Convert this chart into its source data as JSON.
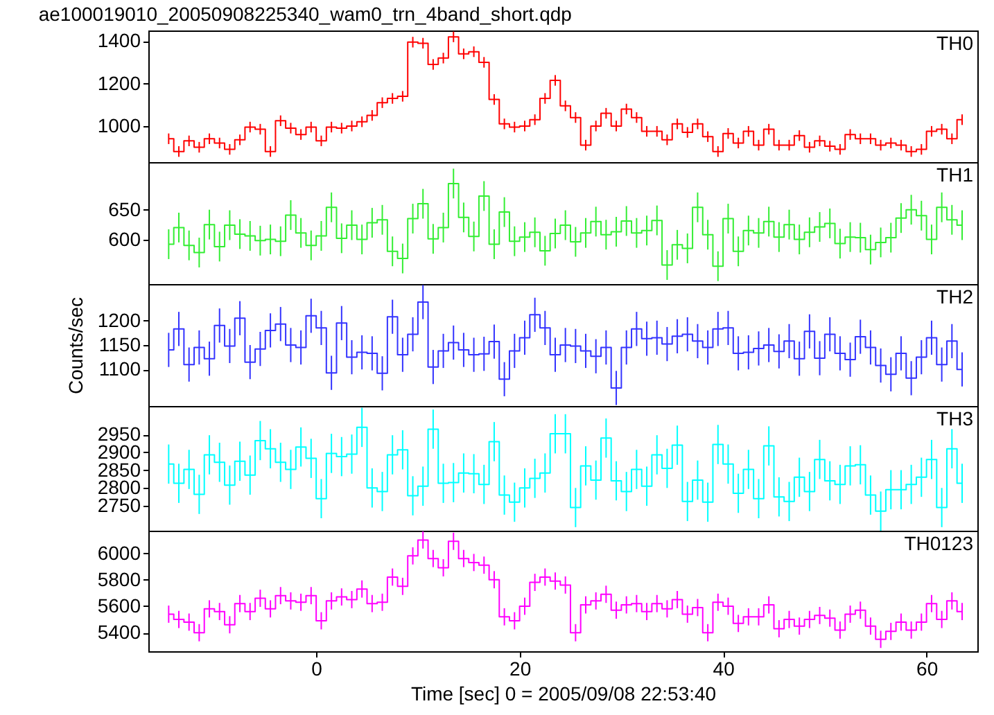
{
  "chart_data": [
    {
      "type": "step",
      "title": "ae100019010_20050908225340_wam0_trn_4band_short.qdp",
      "xlim": [
        -16.5,
        65
      ],
      "xticks": [
        0,
        20,
        40,
        60
      ],
      "ylim": [
        830,
        1450
      ],
      "yticks": [
        1000,
        1200,
        1400
      ],
      "tick_labels": "y",
      "x": [
        -14.5,
        -13.5,
        -12.5,
        -11.5,
        -10.5,
        -9.5,
        -8.5,
        -7.5,
        -6.5,
        -5.5,
        -4.5,
        -3.5,
        -2.5,
        -1.5,
        -0.5,
        0.5,
        1.5,
        2.5,
        3.5,
        4.5,
        5.5,
        6.5,
        7.5,
        8.5,
        9.5,
        10.5,
        11.5,
        12.5,
        13.5,
        14.5,
        15.5,
        16.5,
        17.5,
        18.5,
        19.5,
        20.5,
        21.5,
        22.5,
        23.5,
        24.5,
        25.5,
        26.5,
        27.5,
        28.5,
        29.5,
        30.5,
        31.5,
        32.5,
        33.5,
        34.5,
        35.5,
        36.5,
        37.5,
        38.5,
        39.5,
        40.5,
        41.5,
        42.5,
        43.5,
        44.5,
        45.5,
        46.5,
        47.5,
        48.5,
        49.5,
        50.5,
        51.5,
        52.5,
        53.5,
        54.5,
        55.5,
        56.5,
        57.5,
        58.5,
        59.5,
        60.5,
        61.5,
        62.5,
        63.5
      ],
      "series": [
        {
          "name": "TH0",
          "color": "#ff0000",
          "values": [
            940,
            880,
            930,
            900,
            940,
            920,
            890,
            935,
            995,
            985,
            880,
            1025,
            990,
            960,
            995,
            930,
            995,
            990,
            1000,
            1020,
            1050,
            1110,
            1130,
            1140,
            1395,
            1390,
            1290,
            1320,
            1420,
            1340,
            1350,
            1300,
            1125,
            1010,
            995,
            1000,
            1030,
            1130,
            1215,
            1095,
            1040,
            910,
            1000,
            1060,
            1000,
            1080,
            1040,
            975,
            975,
            935,
            1010,
            970,
            1010,
            950,
            880,
            965,
            920,
            975,
            910,
            985,
            910,
            910,
            955,
            900,
            930,
            905,
            890,
            960,
            940,
            940,
            910,
            920,
            910,
            880,
            890,
            975,
            985,
            940,
            1030
          ],
          "errors": [
            25,
            25,
            25,
            25,
            25,
            25,
            25,
            25,
            25,
            25,
            25,
            25,
            25,
            25,
            25,
            25,
            25,
            25,
            25,
            25,
            25,
            25,
            25,
            25,
            25,
            25,
            25,
            25,
            25,
            25,
            25,
            25,
            25,
            25,
            25,
            25,
            25,
            25,
            25,
            25,
            25,
            25,
            25,
            25,
            25,
            25,
            25,
            25,
            25,
            25,
            25,
            25,
            25,
            25,
            25,
            25,
            25,
            25,
            25,
            25,
            25,
            25,
            25,
            25,
            25,
            25,
            25,
            25,
            25,
            25,
            25,
            25,
            25,
            25,
            25,
            25,
            25,
            25,
            25
          ]
        }
      ]
    },
    {
      "type": "step",
      "xlim": [
        -16.5,
        65
      ],
      "xticks": [
        0,
        20,
        40,
        60
      ],
      "ylim": [
        525,
        730
      ],
      "yticks": [
        600,
        650
      ],
      "tick_labels": "y",
      "x": [
        -14.5,
        -13.5,
        -12.5,
        -11.5,
        -10.5,
        -9.5,
        -8.5,
        -7.5,
        -6.5,
        -5.5,
        -4.5,
        -3.5,
        -2.5,
        -1.5,
        -0.5,
        0.5,
        1.5,
        2.5,
        3.5,
        4.5,
        5.5,
        6.5,
        7.5,
        8.5,
        9.5,
        10.5,
        11.5,
        12.5,
        13.5,
        14.5,
        15.5,
        16.5,
        17.5,
        18.5,
        19.5,
        20.5,
        21.5,
        22.5,
        23.5,
        24.5,
        25.5,
        26.5,
        27.5,
        28.5,
        29.5,
        30.5,
        31.5,
        32.5,
        33.5,
        34.5,
        35.5,
        36.5,
        37.5,
        38.5,
        39.5,
        40.5,
        41.5,
        42.5,
        43.5,
        44.5,
        45.5,
        46.5,
        47.5,
        48.5,
        49.5,
        50.5,
        51.5,
        52.5,
        53.5,
        54.5,
        55.5,
        56.5,
        57.5,
        58.5,
        59.5,
        60.5,
        61.5,
        62.5,
        63.5
      ],
      "series": [
        {
          "name": "TH1",
          "color": "#33ee33",
          "values": [
            592,
            620,
            590,
            578,
            625,
            588,
            624,
            609,
            606,
            598,
            600,
            597,
            641,
            611,
            590,
            606,
            654,
            602,
            624,
            600,
            628,
            633,
            580,
            568,
            635,
            660,
            601,
            620,
            694,
            637,
            605,
            673,
            592,
            646,
            597,
            604,
            612,
            581,
            610,
            624,
            596,
            611,
            630,
            608,
            613,
            631,
            611,
            615,
            632,
            557,
            591,
            585,
            654,
            608,
            555,
            635,
            580,
            615,
            611,
            630,
            604,
            625,
            600,
            612,
            621,
            627,
            593,
            604,
            603,
            583,
            595,
            603,
            636,
            650,
            640,
            600,
            654,
            633,
            624
          ],
          "errors": [
            25,
            25,
            25,
            25,
            25,
            25,
            25,
            25,
            25,
            25,
            25,
            25,
            25,
            25,
            25,
            25,
            25,
            25,
            25,
            25,
            25,
            25,
            25,
            25,
            25,
            25,
            25,
            25,
            25,
            25,
            25,
            25,
            25,
            25,
            25,
            25,
            25,
            25,
            25,
            25,
            25,
            25,
            25,
            25,
            25,
            25,
            25,
            25,
            25,
            25,
            25,
            25,
            25,
            25,
            25,
            25,
            25,
            25,
            25,
            25,
            25,
            25,
            25,
            25,
            25,
            25,
            25,
            25,
            25,
            25,
            25,
            25,
            25,
            25,
            25,
            25,
            25,
            25,
            25
          ]
        }
      ]
    },
    {
      "type": "step",
      "ylabel": "Counts/sec",
      "xlim": [
        -16.5,
        65
      ],
      "xticks": [
        0,
        20,
        40,
        60
      ],
      "ylim": [
        1025,
        1275
      ],
      "yticks": [
        1100,
        1150,
        1200
      ],
      "tick_labels": "y",
      "x": [
        -14.5,
        -13.5,
        -12.5,
        -11.5,
        -10.5,
        -9.5,
        -8.5,
        -7.5,
        -6.5,
        -5.5,
        -4.5,
        -3.5,
        -2.5,
        -1.5,
        -0.5,
        0.5,
        1.5,
        2.5,
        3.5,
        4.5,
        5.5,
        6.5,
        7.5,
        8.5,
        9.5,
        10.5,
        11.5,
        12.5,
        13.5,
        14.5,
        15.5,
        16.5,
        17.5,
        18.5,
        19.5,
        20.5,
        21.5,
        22.5,
        23.5,
        24.5,
        25.5,
        26.5,
        27.5,
        28.5,
        29.5,
        30.5,
        31.5,
        32.5,
        33.5,
        34.5,
        35.5,
        36.5,
        37.5,
        38.5,
        39.5,
        40.5,
        41.5,
        42.5,
        43.5,
        44.5,
        45.5,
        46.5,
        47.5,
        48.5,
        49.5,
        50.5,
        51.5,
        52.5,
        53.5,
        54.5,
        55.5,
        56.5,
        57.5,
        58.5,
        59.5,
        60.5,
        61.5,
        62.5,
        63.5
      ],
      "series": [
        {
          "name": "TH2",
          "color": "#3333ff",
          "values": [
            1140,
            1183,
            1110,
            1145,
            1122,
            1190,
            1148,
            1205,
            1115,
            1142,
            1180,
            1193,
            1150,
            1145,
            1210,
            1185,
            1093,
            1195,
            1125,
            1135,
            1133,
            1092,
            1208,
            1130,
            1172,
            1238,
            1105,
            1138,
            1155,
            1140,
            1130,
            1132,
            1157,
            1080,
            1138,
            1165,
            1212,
            1185,
            1130,
            1150,
            1148,
            1138,
            1127,
            1145,
            1062,
            1145,
            1183,
            1163,
            1165,
            1152,
            1168,
            1172,
            1158,
            1145,
            1183,
            1185,
            1133,
            1135,
            1143,
            1150,
            1137,
            1158,
            1122,
            1178,
            1123,
            1172,
            1133,
            1120,
            1167,
            1145,
            1108,
            1090,
            1133,
            1082,
            1125,
            1165,
            1110,
            1158,
            1100
          ],
          "errors": [
            35,
            35,
            35,
            35,
            35,
            35,
            35,
            35,
            35,
            35,
            35,
            35,
            35,
            35,
            35,
            35,
            35,
            35,
            35,
            35,
            35,
            35,
            35,
            35,
            35,
            35,
            35,
            35,
            35,
            35,
            35,
            35,
            35,
            35,
            35,
            35,
            35,
            35,
            35,
            35,
            35,
            35,
            35,
            35,
            35,
            35,
            35,
            35,
            35,
            35,
            35,
            35,
            35,
            35,
            35,
            35,
            35,
            35,
            35,
            35,
            35,
            35,
            35,
            35,
            35,
            35,
            35,
            35,
            35,
            35,
            35,
            35,
            35,
            35,
            35,
            35,
            35,
            35,
            35
          ]
        }
      ]
    },
    {
      "type": "step",
      "xlim": [
        -16.5,
        65
      ],
      "xticks": [
        0,
        20,
        40,
        60
      ],
      "ylim": [
        2680,
        3030
      ],
      "yticks": [
        2750,
        2800,
        2850,
        2900,
        2950
      ],
      "tick_labels": "y",
      "x": [
        -14.5,
        -13.5,
        -12.5,
        -11.5,
        -10.5,
        -9.5,
        -8.5,
        -7.5,
        -6.5,
        -5.5,
        -4.5,
        -3.5,
        -2.5,
        -1.5,
        -0.5,
        0.5,
        1.5,
        2.5,
        3.5,
        4.5,
        5.5,
        6.5,
        7.5,
        8.5,
        9.5,
        10.5,
        11.5,
        12.5,
        13.5,
        14.5,
        15.5,
        16.5,
        17.5,
        18.5,
        19.5,
        20.5,
        21.5,
        22.5,
        23.5,
        24.5,
        25.5,
        26.5,
        27.5,
        28.5,
        29.5,
        30.5,
        31.5,
        32.5,
        33.5,
        34.5,
        35.5,
        36.5,
        37.5,
        38.5,
        39.5,
        40.5,
        41.5,
        42.5,
        43.5,
        44.5,
        45.5,
        46.5,
        47.5,
        48.5,
        49.5,
        50.5,
        51.5,
        52.5,
        53.5,
        54.5,
        55.5,
        56.5,
        57.5,
        58.5,
        59.5,
        60.5,
        61.5,
        62.5,
        63.5
      ],
      "series": [
        {
          "name": "TH3",
          "color": "#00ffff",
          "values": [
            2867,
            2813,
            2852,
            2782,
            2893,
            2872,
            2808,
            2875,
            2836,
            2933,
            2910,
            2872,
            2852,
            2915,
            2883,
            2770,
            2897,
            2888,
            2895,
            2970,
            2800,
            2790,
            2893,
            2907,
            2778,
            2805,
            2965,
            2813,
            2815,
            2842,
            2840,
            2810,
            2930,
            2780,
            2760,
            2800,
            2827,
            2842,
            2952,
            2952,
            2745,
            2862,
            2822,
            2940,
            2820,
            2790,
            2852,
            2805,
            2893,
            2855,
            2920,
            2762,
            2822,
            2760,
            2922,
            2867,
            2785,
            2852,
            2770,
            2918,
            2775,
            2762,
            2830,
            2790,
            2880,
            2820,
            2810,
            2862,
            2865,
            2780,
            2735,
            2795,
            2795,
            2810,
            2830,
            2880,
            2745,
            2910,
            2813
          ],
          "errors": [
            55,
            55,
            55,
            55,
            55,
            55,
            55,
            55,
            55,
            55,
            55,
            55,
            55,
            55,
            55,
            55,
            55,
            55,
            55,
            55,
            55,
            55,
            55,
            55,
            55,
            55,
            55,
            55,
            55,
            55,
            55,
            55,
            55,
            55,
            55,
            55,
            55,
            55,
            55,
            55,
            55,
            55,
            55,
            55,
            55,
            55,
            55,
            55,
            55,
            55,
            55,
            55,
            55,
            55,
            55,
            55,
            55,
            55,
            55,
            55,
            55,
            55,
            55,
            55,
            55,
            55,
            55,
            55,
            55,
            55,
            55,
            55,
            55,
            55,
            55,
            55,
            55,
            55,
            55
          ]
        }
      ]
    },
    {
      "type": "step",
      "xlabel": "Time [sec] 0 = 2005/09/08 22:53:40",
      "xlim": [
        -16.5,
        65
      ],
      "xticks": [
        0,
        20,
        40,
        60
      ],
      "ylim": [
        5260,
        6170
      ],
      "yticks": [
        5400,
        5600,
        5800,
        6000
      ],
      "x": [
        -14.5,
        -13.5,
        -12.5,
        -11.5,
        -10.5,
        -9.5,
        -8.5,
        -7.5,
        -6.5,
        -5.5,
        -4.5,
        -3.5,
        -2.5,
        -1.5,
        -0.5,
        0.5,
        1.5,
        2.5,
        3.5,
        4.5,
        5.5,
        6.5,
        7.5,
        8.5,
        9.5,
        10.5,
        11.5,
        12.5,
        13.5,
        14.5,
        15.5,
        16.5,
        17.5,
        18.5,
        19.5,
        20.5,
        21.5,
        22.5,
        23.5,
        24.5,
        25.5,
        26.5,
        27.5,
        28.5,
        29.5,
        30.5,
        31.5,
        32.5,
        33.5,
        34.5,
        35.5,
        36.5,
        37.5,
        38.5,
        39.5,
        40.5,
        41.5,
        42.5,
        43.5,
        44.5,
        45.5,
        46.5,
        47.5,
        48.5,
        49.5,
        50.5,
        51.5,
        52.5,
        53.5,
        54.5,
        55.5,
        56.5,
        57.5,
        58.5,
        59.5,
        60.5,
        61.5,
        62.5,
        63.5
      ],
      "series": [
        {
          "name": "TH0123",
          "color": "#ff00ff",
          "values": [
            5540,
            5500,
            5480,
            5400,
            5580,
            5560,
            5460,
            5620,
            5560,
            5660,
            5580,
            5680,
            5640,
            5630,
            5680,
            5490,
            5640,
            5670,
            5650,
            5730,
            5620,
            5630,
            5820,
            5750,
            5980,
            6100,
            5960,
            5890,
            6090,
            5960,
            5930,
            5910,
            5800,
            5520,
            5490,
            5600,
            5780,
            5820,
            5790,
            5760,
            5400,
            5610,
            5640,
            5690,
            5570,
            5610,
            5620,
            5560,
            5620,
            5580,
            5650,
            5540,
            5590,
            5400,
            5630,
            5600,
            5470,
            5520,
            5520,
            5610,
            5430,
            5500,
            5450,
            5500,
            5530,
            5510,
            5420,
            5540,
            5570,
            5450,
            5350,
            5410,
            5480,
            5420,
            5480,
            5620,
            5500,
            5640,
            5560
          ],
          "errors": [
            65,
            65,
            65,
            65,
            65,
            65,
            65,
            65,
            65,
            65,
            65,
            65,
            65,
            65,
            65,
            65,
            65,
            65,
            65,
            65,
            65,
            65,
            65,
            65,
            65,
            65,
            65,
            65,
            65,
            65,
            65,
            65,
            65,
            65,
            65,
            65,
            65,
            65,
            65,
            65,
            65,
            65,
            65,
            65,
            65,
            65,
            65,
            65,
            65,
            65,
            65,
            65,
            65,
            65,
            65,
            65,
            65,
            65,
            65,
            65,
            65,
            65,
            65,
            65,
            65,
            65,
            65,
            65,
            65,
            65,
            65,
            65,
            65,
            65,
            65,
            65,
            65,
            65,
            65
          ]
        }
      ]
    }
  ]
}
